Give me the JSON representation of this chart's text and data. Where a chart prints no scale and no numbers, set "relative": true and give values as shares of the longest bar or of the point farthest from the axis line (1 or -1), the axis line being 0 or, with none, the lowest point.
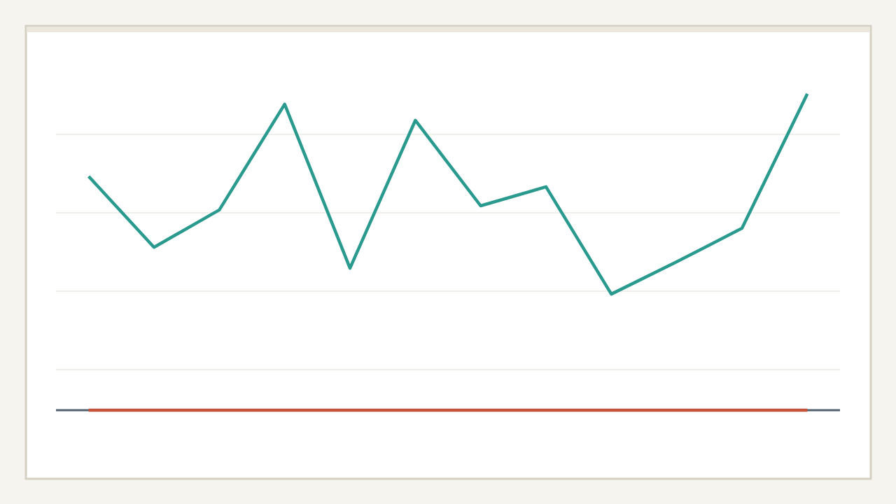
{
  "chart_data": {
    "type": "line",
    "relative": true,
    "categories": [
      null,
      null,
      null,
      null,
      null,
      null,
      null,
      null,
      null,
      null,
      null,
      null
    ],
    "series": [
      {
        "color": "#2a9a8f",
        "values": [
          0.739,
          0.515,
          0.633,
          0.967,
          0.449,
          0.916,
          0.646,
          0.706,
          0.367,
          0.469,
          0.575,
          1
        ]
      },
      {
        "color": "#c5533b",
        "values": [
          0,
          0,
          0,
          0,
          0,
          0,
          0,
          0,
          0,
          0,
          0,
          0
        ]
      }
    ],
    "grid": "y"
  }
}
